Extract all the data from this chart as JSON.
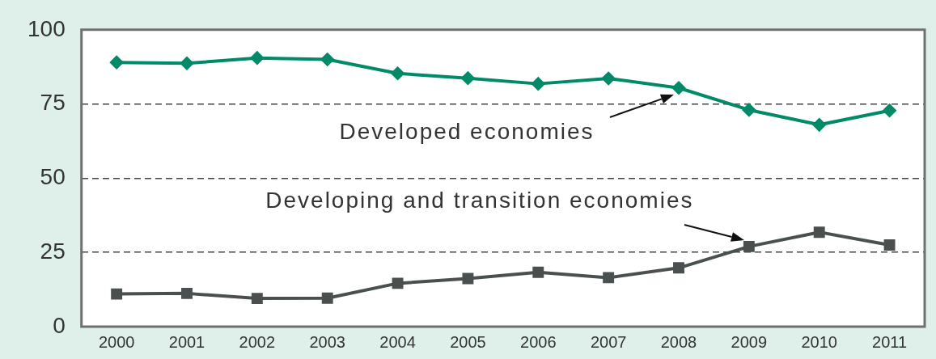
{
  "chart_data": {
    "type": "line",
    "categories": [
      "2000",
      "2001",
      "2002",
      "2003",
      "2004",
      "2005",
      "2006",
      "2007",
      "2008",
      "2009",
      "2010",
      "2011"
    ],
    "series": [
      {
        "color": "#008a68",
        "marker": "diamond",
        "values": [
          89,
          88.7,
          90.5,
          90,
          85.3,
          83.7,
          81.8,
          83.6,
          80.4,
          73,
          68,
          72.8
        ]
      },
      {
        "color": "#4a5050",
        "marker": "square",
        "values": [
          11,
          11.2,
          9.5,
          9.6,
          14.6,
          16.2,
          18.3,
          16.5,
          19.8,
          27,
          31.8,
          27.5
        ]
      }
    ],
    "ylim": [
      0,
      100
    ],
    "yticks": [
      0,
      25,
      50,
      75,
      100
    ],
    "grid": "y",
    "legend": false,
    "annotations": [
      "Developed economies",
      "Developing and transition economies"
    ]
  }
}
